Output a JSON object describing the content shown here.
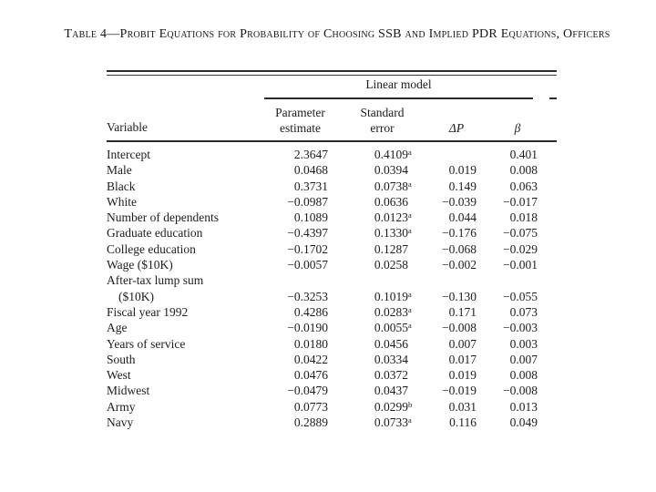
{
  "colors": {
    "background": "#ffffff",
    "ink": "#1d1d1d",
    "rule": "#2b2b2b"
  },
  "title": "Table 4—Probit Equations for Probability of Choosing SSB and Implied PDR Equations, Officers",
  "table": {
    "spanner_label": "Linear model",
    "headers": {
      "variable": "Variable",
      "parameter_line1": "Parameter",
      "parameter_line2": "estimate",
      "stderr_line1": "Standard",
      "stderr_line2": "error",
      "delta_p": "ΔP",
      "beta": "β"
    },
    "rows": [
      {
        "variable": "Intercept",
        "indent": false,
        "parameter": "2.3647",
        "stderr": "0.4109",
        "stderr_note": "a",
        "delta_p": "",
        "beta": "0.401"
      },
      {
        "variable": "Male",
        "indent": false,
        "parameter": "0.0468",
        "stderr": "0.0394",
        "stderr_note": "",
        "delta_p": "0.019",
        "beta": "0.008"
      },
      {
        "variable": "Black",
        "indent": false,
        "parameter": "0.3731",
        "stderr": "0.0738",
        "stderr_note": "a",
        "delta_p": "0.149",
        "beta": "0.063"
      },
      {
        "variable": "White",
        "indent": false,
        "parameter": "−0.0987",
        "stderr": "0.0636",
        "stderr_note": "",
        "delta_p": "−0.039",
        "beta": "−0.017"
      },
      {
        "variable": "Number of dependents",
        "indent": false,
        "parameter": "0.1089",
        "stderr": "0.0123",
        "stderr_note": "a",
        "delta_p": "0.044",
        "beta": "0.018"
      },
      {
        "variable": "Graduate education",
        "indent": false,
        "parameter": "−0.4397",
        "stderr": "0.1330",
        "stderr_note": "a",
        "delta_p": "−0.176",
        "beta": "−0.075"
      },
      {
        "variable": "College education",
        "indent": false,
        "parameter": "−0.1702",
        "stderr": "0.1287",
        "stderr_note": "",
        "delta_p": "−0.068",
        "beta": "−0.029"
      },
      {
        "variable": "Wage ($10K)",
        "indent": false,
        "parameter": "−0.0057",
        "stderr": "0.0258",
        "stderr_note": "",
        "delta_p": "−0.002",
        "beta": "−0.001"
      },
      {
        "variable": "After-tax lump sum",
        "indent": false,
        "parameter": "",
        "stderr": "",
        "stderr_note": "",
        "delta_p": "",
        "beta": ""
      },
      {
        "variable": "($10K)",
        "indent": true,
        "parameter": "−0.3253",
        "stderr": "0.1019",
        "stderr_note": "a",
        "delta_p": "−0.130",
        "beta": "−0.055"
      },
      {
        "variable": "Fiscal year 1992",
        "indent": false,
        "parameter": "0.4286",
        "stderr": "0.0283",
        "stderr_note": "a",
        "delta_p": "0.171",
        "beta": "0.073"
      },
      {
        "variable": "Age",
        "indent": false,
        "parameter": "−0.0190",
        "stderr": "0.0055",
        "stderr_note": "a",
        "delta_p": "−0.008",
        "beta": "−0.003"
      },
      {
        "variable": "Years of service",
        "indent": false,
        "parameter": "0.0180",
        "stderr": "0.0456",
        "stderr_note": "",
        "delta_p": "0.007",
        "beta": "0.003"
      },
      {
        "variable": "South",
        "indent": false,
        "parameter": "0.0422",
        "stderr": "0.0334",
        "stderr_note": "",
        "delta_p": "0.017",
        "beta": "0.007"
      },
      {
        "variable": "West",
        "indent": false,
        "parameter": "0.0476",
        "stderr": "0.0372",
        "stderr_note": "",
        "delta_p": "0.019",
        "beta": "0.008"
      },
      {
        "variable": "Midwest",
        "indent": false,
        "parameter": "−0.0479",
        "stderr": "0.0437",
        "stderr_note": "",
        "delta_p": "−0.019",
        "beta": "−0.008"
      },
      {
        "variable": "Army",
        "indent": false,
        "parameter": "0.0773",
        "stderr": "0.0299",
        "stderr_note": "b",
        "delta_p": "0.031",
        "beta": "0.013"
      },
      {
        "variable": "Navy",
        "indent": false,
        "parameter": "0.2889",
        "stderr": "0.0733",
        "stderr_note": "a",
        "delta_p": "0.116",
        "beta": "0.049"
      }
    ]
  }
}
